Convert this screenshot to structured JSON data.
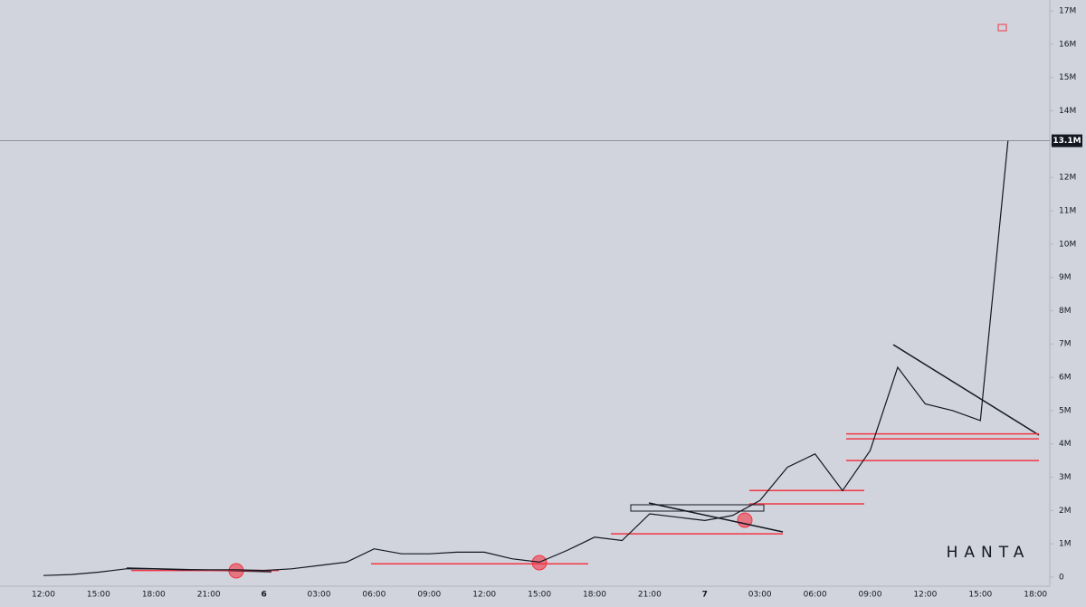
{
  "chart_data": {
    "type": "line",
    "watermark": "HANTA",
    "categories": [
      "12:00",
      null,
      "15:00",
      null,
      "18:00",
      null,
      "21:00",
      null,
      "6",
      null,
      "03:00",
      null,
      "06:00",
      null,
      "09:00",
      null,
      "12:00",
      null,
      "15:00",
      null,
      "18:00",
      null,
      "21:00",
      null,
      "7",
      null,
      "03:00",
      null,
      "06:00",
      null,
      "09:00",
      null,
      "12:00",
      null,
      "15:00",
      null,
      "18:00"
    ],
    "series": [
      {
        "name": "HANTA",
        "color": "#131722",
        "values": [
          0.05,
          0.08,
          0.15,
          0.25,
          0.25,
          0.22,
          0.22,
          0.22,
          0.2,
          0.25,
          0.35,
          0.45,
          0.85,
          0.7,
          0.7,
          0.75,
          0.75,
          0.55,
          0.45,
          0.8,
          1.2,
          1.1,
          1.9,
          1.8,
          1.7,
          1.85,
          2.3,
          3.3,
          3.7,
          2.6,
          3.8,
          6.3,
          5.2,
          5.0,
          4.7,
          13.1,
          null
        ]
      }
    ],
    "levels": [
      0.2,
      0.4,
      1.3,
      2.2,
      2.6,
      3.5,
      4.15,
      4.3
    ],
    "level_color": "#f23645",
    "price_tag": {
      "value": 13.1,
      "label": "13.1M"
    },
    "ylim": [
      0,
      17
    ],
    "yticks": [
      0,
      {
        "value": 1,
        "label": "1M"
      },
      {
        "value": 2,
        "label": "2M"
      },
      {
        "value": 3,
        "label": "3M"
      },
      {
        "value": 4,
        "label": "4M"
      },
      {
        "value": 5,
        "label": "5M"
      },
      {
        "value": 6,
        "label": "6M"
      },
      {
        "value": 7,
        "label": "7M"
      },
      {
        "value": 8,
        "label": "8M"
      },
      {
        "value": 9,
        "label": "9M"
      },
      {
        "value": 10,
        "label": "10M"
      },
      {
        "value": 11,
        "label": "11M"
      },
      {
        "value": 12,
        "label": "12M"
      },
      {
        "value": 13,
        "label": "13M"
      },
      {
        "value": 14,
        "label": "14M"
      },
      {
        "value": 15,
        "label": "15M"
      },
      {
        "value": 16,
        "label": "16M"
      },
      {
        "value": 17,
        "label": "17M"
      }
    ]
  }
}
